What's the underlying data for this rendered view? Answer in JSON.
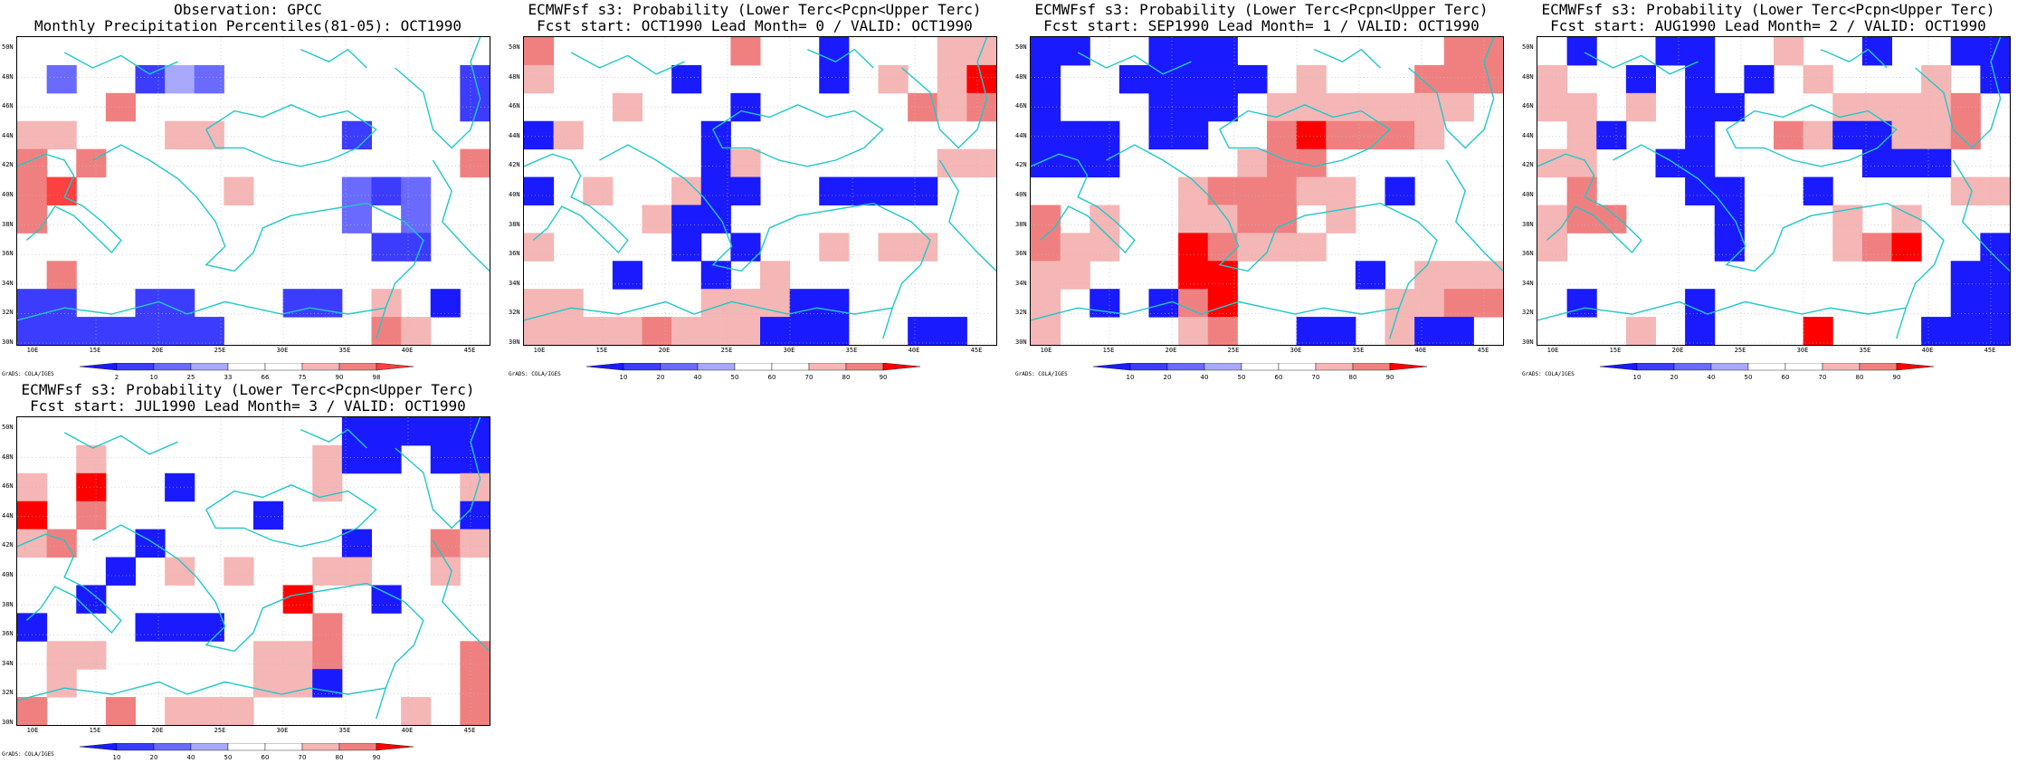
{
  "colors": {
    "p2": "#1a1aff",
    "p10": "#3c3cff",
    "p25": "#6a6aff",
    "p33": "#a8a8ff",
    "p66": "#ffffff",
    "p75": "#f5b6b6",
    "p90": "#f08080",
    "p98": "#ff4040",
    "max": "#ff0000",
    "coast": "#20c8c8",
    "border": "#000000"
  },
  "lat_labels": [
    "50N",
    "48N",
    "46N",
    "44N",
    "42N",
    "40N",
    "38N",
    "36N",
    "34N",
    "32N",
    "30N"
  ],
  "lon_labels": [
    "10E",
    "15E",
    "20E",
    "25E",
    "30E",
    "35E",
    "40E",
    "45E"
  ],
  "credit": "GrADS: COLA/IGES",
  "obs_scale": [
    "2",
    "10",
    "25",
    "33",
    "66",
    "75",
    "90",
    "98"
  ],
  "fc_scale": [
    "10",
    "20",
    "40",
    "50",
    "60",
    "70",
    "80",
    "90"
  ],
  "panels": [
    {
      "title1": "Observation: GPCC",
      "title2": "Monthly Precipitation Percentiles(81-05): OCT1990",
      "cells": [
        [
          0,
          0,
          0,
          0,
          0,
          0,
          0,
          0,
          0,
          0,
          0,
          0,
          0,
          0,
          0,
          0
        ],
        [
          0,
          3,
          0,
          0,
          2,
          4,
          3,
          0,
          0,
          0,
          0,
          0,
          0,
          0,
          0,
          2
        ],
        [
          0,
          0,
          0,
          6,
          0,
          0,
          0,
          0,
          0,
          0,
          0,
          0,
          0,
          0,
          0,
          2
        ],
        [
          5,
          5,
          0,
          0,
          0,
          5,
          5,
          0,
          0,
          0,
          0,
          2,
          0,
          0,
          0,
          0
        ],
        [
          6,
          0,
          6,
          0,
          0,
          0,
          0,
          0,
          0,
          0,
          0,
          0,
          0,
          0,
          0,
          6
        ],
        [
          6,
          7,
          0,
          0,
          0,
          0,
          0,
          5,
          0,
          0,
          0,
          3,
          2,
          3,
          0,
          0
        ],
        [
          6,
          0,
          0,
          0,
          0,
          0,
          0,
          0,
          0,
          0,
          0,
          3,
          0,
          3,
          0,
          0
        ],
        [
          0,
          0,
          0,
          0,
          0,
          0,
          0,
          0,
          0,
          0,
          0,
          0,
          2,
          2,
          0,
          0
        ],
        [
          0,
          6,
          0,
          0,
          0,
          0,
          0,
          0,
          0,
          0,
          0,
          0,
          0,
          0,
          0,
          0
        ],
        [
          2,
          2,
          0,
          0,
          2,
          2,
          0,
          0,
          0,
          2,
          2,
          0,
          5,
          0,
          1,
          0
        ],
        [
          2,
          2,
          2,
          2,
          2,
          2,
          2,
          0,
          0,
          0,
          0,
          0,
          6,
          5,
          0,
          0
        ]
      ]
    },
    {
      "title1": "ECMWFsf s3: Probability (Lower Terc<Pcpn<Upper Terc)",
      "title2": "Fcst start: OCT1990   Lead Month= 0 / VALID: OCT1990",
      "cells": [
        [
          6,
          0,
          0,
          0,
          0,
          0,
          0,
          6,
          0,
          0,
          1,
          0,
          0,
          0,
          5,
          5
        ],
        [
          5,
          0,
          0,
          0,
          0,
          1,
          0,
          0,
          0,
          0,
          1,
          0,
          5,
          0,
          5,
          7
        ],
        [
          0,
          0,
          0,
          5,
          0,
          0,
          0,
          1,
          0,
          0,
          0,
          0,
          0,
          6,
          5,
          6
        ],
        [
          1,
          5,
          0,
          0,
          0,
          0,
          1,
          0,
          0,
          0,
          0,
          0,
          0,
          0,
          0,
          0
        ],
        [
          0,
          0,
          0,
          0,
          0,
          0,
          1,
          5,
          0,
          0,
          0,
          0,
          0,
          0,
          5,
          5
        ],
        [
          1,
          0,
          5,
          0,
          0,
          5,
          1,
          1,
          0,
          0,
          1,
          1,
          1,
          1,
          0,
          0
        ],
        [
          0,
          0,
          0,
          0,
          5,
          1,
          1,
          0,
          0,
          0,
          0,
          0,
          0,
          0,
          0,
          0
        ],
        [
          5,
          0,
          0,
          0,
          0,
          1,
          0,
          1,
          0,
          0,
          5,
          0,
          5,
          5,
          0,
          0
        ],
        [
          0,
          0,
          0,
          1,
          0,
          0,
          1,
          0,
          5,
          0,
          0,
          0,
          0,
          0,
          0,
          0
        ],
        [
          5,
          5,
          0,
          0,
          0,
          0,
          5,
          5,
          5,
          1,
          1,
          0,
          0,
          0,
          0,
          0
        ],
        [
          5,
          5,
          5,
          5,
          6,
          5,
          5,
          5,
          1,
          1,
          1,
          0,
          0,
          1,
          1,
          0
        ]
      ]
    },
    {
      "title1": "ECMWFsf s3: Probability (Lower Terc<Pcpn<Upper Terc)",
      "title2": "Fcst start: SEP1990   Lead Month= 1 / VALID: OCT1990",
      "cells": [
        [
          1,
          1,
          0,
          0,
          1,
          1,
          1,
          0,
          0,
          0,
          0,
          0,
          0,
          0,
          6,
          6
        ],
        [
          1,
          0,
          0,
          1,
          1,
          1,
          1,
          1,
          0,
          5,
          0,
          0,
          0,
          6,
          6,
          6
        ],
        [
          1,
          0,
          0,
          0,
          1,
          1,
          1,
          0,
          5,
          5,
          5,
          5,
          5,
          5,
          5,
          0
        ],
        [
          1,
          1,
          1,
          0,
          1,
          1,
          0,
          0,
          6,
          7,
          6,
          6,
          6,
          5,
          0,
          0
        ],
        [
          1,
          1,
          1,
          0,
          0,
          0,
          0,
          5,
          6,
          6,
          0,
          0,
          0,
          0,
          0,
          0
        ],
        [
          0,
          0,
          0,
          0,
          0,
          5,
          6,
          6,
          6,
          5,
          5,
          0,
          1,
          0,
          0,
          0
        ],
        [
          6,
          0,
          5,
          0,
          0,
          5,
          5,
          6,
          6,
          0,
          5,
          0,
          0,
          0,
          0,
          0
        ],
        [
          6,
          5,
          5,
          0,
          0,
          7,
          6,
          5,
          5,
          5,
          0,
          0,
          0,
          0,
          0,
          0
        ],
        [
          5,
          5,
          0,
          0,
          0,
          7,
          7,
          0,
          0,
          0,
          0,
          1,
          0,
          5,
          5,
          5
        ],
        [
          5,
          0,
          1,
          0,
          1,
          6,
          7,
          0,
          0,
          0,
          0,
          0,
          5,
          5,
          6,
          6
        ],
        [
          5,
          0,
          0,
          0,
          0,
          5,
          6,
          0,
          0,
          1,
          1,
          0,
          5,
          1,
          1,
          0
        ]
      ]
    },
    {
      "title1": "ECMWFsf s3: Probability (Lower Terc<Pcpn<Upper Terc)",
      "title2": "Fcst start: AUG1990   Lead Month= 2 / VALID: OCT1990",
      "cells": [
        [
          0,
          1,
          0,
          0,
          1,
          1,
          0,
          0,
          5,
          0,
          0,
          1,
          0,
          0,
          1,
          1
        ],
        [
          5,
          0,
          0,
          1,
          0,
          1,
          0,
          1,
          0,
          5,
          0,
          0,
          0,
          5,
          0,
          1
        ],
        [
          5,
          5,
          0,
          5,
          0,
          1,
          1,
          0,
          0,
          0,
          5,
          5,
          5,
          5,
          6,
          0
        ],
        [
          0,
          5,
          1,
          0,
          0,
          1,
          0,
          0,
          6,
          5,
          1,
          1,
          5,
          5,
          6,
          0
        ],
        [
          5,
          5,
          0,
          0,
          1,
          1,
          0,
          0,
          0,
          0,
          0,
          1,
          1,
          1,
          0,
          0
        ],
        [
          0,
          6,
          0,
          0,
          0,
          1,
          1,
          0,
          0,
          1,
          0,
          0,
          0,
          0,
          5,
          5
        ],
        [
          5,
          6,
          6,
          0,
          0,
          0,
          1,
          0,
          0,
          0,
          5,
          0,
          5,
          0,
          0,
          0
        ],
        [
          5,
          0,
          0,
          0,
          0,
          0,
          1,
          0,
          0,
          0,
          5,
          6,
          7,
          0,
          0,
          1
        ],
        [
          0,
          0,
          0,
          0,
          0,
          0,
          0,
          0,
          0,
          0,
          0,
          0,
          0,
          0,
          1,
          1
        ],
        [
          0,
          1,
          0,
          0,
          0,
          1,
          0,
          0,
          0,
          0,
          0,
          0,
          0,
          0,
          1,
          1
        ],
        [
          0,
          0,
          0,
          5,
          0,
          1,
          0,
          0,
          0,
          7,
          0,
          0,
          0,
          1,
          1,
          1
        ]
      ]
    },
    {
      "title1": "ECMWFsf s3: Probability (Lower Terc<Pcpn<Upper Terc)",
      "title2": "Fcst start: JUL1990   Lead Month= 3 / VALID: OCT1990",
      "cells": [
        [
          0,
          0,
          0,
          0,
          0,
          0,
          0,
          0,
          0,
          0,
          0,
          1,
          1,
          1,
          1,
          1
        ],
        [
          0,
          0,
          5,
          0,
          0,
          0,
          0,
          0,
          0,
          0,
          5,
          1,
          1,
          0,
          1,
          1
        ],
        [
          5,
          0,
          7,
          0,
          0,
          1,
          0,
          0,
          0,
          0,
          5,
          0,
          0,
          0,
          0,
          5
        ],
        [
          7,
          0,
          6,
          0,
          0,
          0,
          0,
          0,
          1,
          0,
          0,
          0,
          0,
          0,
          0,
          1
        ],
        [
          5,
          6,
          0,
          0,
          1,
          0,
          0,
          0,
          0,
          0,
          0,
          1,
          0,
          0,
          6,
          5
        ],
        [
          0,
          0,
          0,
          1,
          0,
          5,
          0,
          5,
          0,
          0,
          5,
          5,
          0,
          0,
          5,
          0
        ],
        [
          0,
          0,
          1,
          0,
          0,
          0,
          0,
          0,
          0,
          7,
          0,
          0,
          1,
          0,
          0,
          0
        ],
        [
          1,
          0,
          0,
          0,
          1,
          1,
          1,
          0,
          0,
          0,
          6,
          0,
          0,
          0,
          0,
          0
        ],
        [
          0,
          5,
          5,
          0,
          0,
          0,
          0,
          0,
          5,
          5,
          6,
          0,
          0,
          0,
          0,
          6
        ],
        [
          0,
          5,
          0,
          0,
          0,
          0,
          0,
          0,
          5,
          5,
          1,
          0,
          0,
          0,
          0,
          6
        ],
        [
          6,
          0,
          0,
          6,
          0,
          5,
          5,
          5,
          0,
          0,
          0,
          0,
          0,
          5,
          0,
          6
        ]
      ]
    }
  ]
}
